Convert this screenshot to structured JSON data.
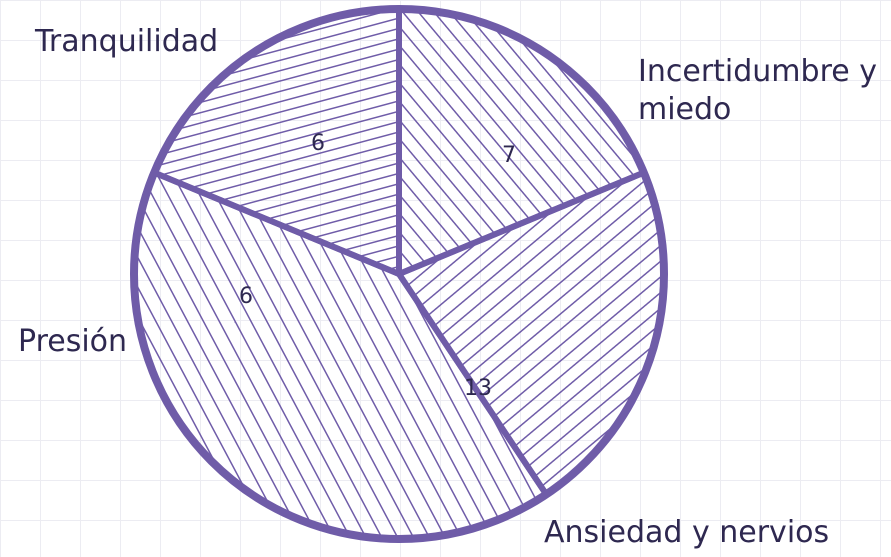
{
  "chart_data": {
    "type": "pie",
    "title": "",
    "categories": [
      "Tranquilidad",
      "Incertidumbre y miedo",
      "Ansiedad y nervios",
      "Presión"
    ],
    "values": [
      6,
      7,
      13,
      6
    ],
    "labels": [
      "6",
      "7",
      "13",
      "6"
    ],
    "legend": "none",
    "grid": true,
    "colors": {
      "stroke": "#6f5ca8",
      "text": "#2e2850",
      "grid": "#ececf2"
    }
  }
}
